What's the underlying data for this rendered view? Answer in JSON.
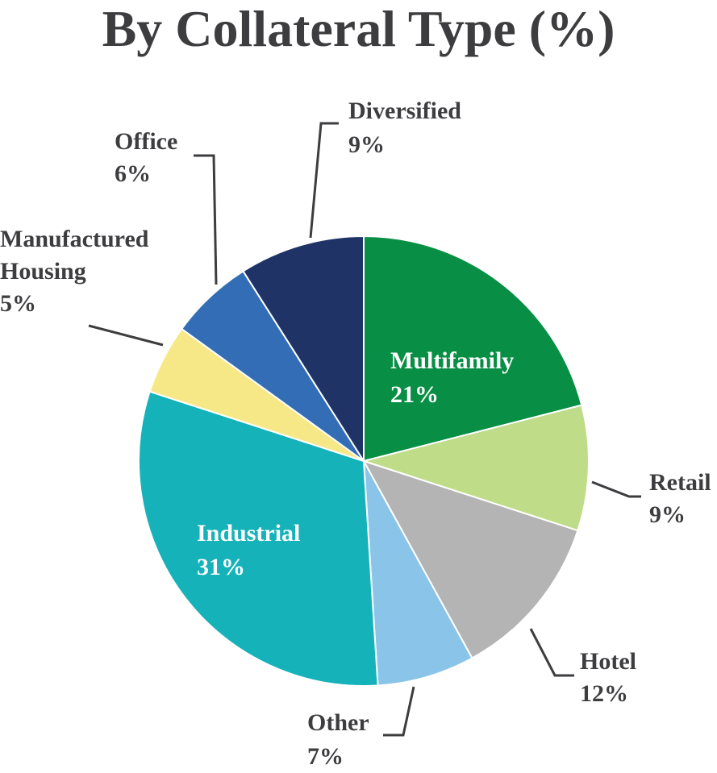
{
  "chart_data": {
    "type": "pie",
    "title": "By Collateral Type (%)",
    "slices": [
      {
        "label": "Multifamily",
        "value": 21,
        "display": "21%",
        "color": "#098f45"
      },
      {
        "label": "Retail",
        "value": 9,
        "display": "9%",
        "color": "#bfdc88"
      },
      {
        "label": "Hotel",
        "value": 12,
        "display": "12%",
        "color": "#b4b4b4"
      },
      {
        "label": "Other",
        "value": 7,
        "display": "7%",
        "color": "#8ac4e8"
      },
      {
        "label": "Industrial",
        "value": 31,
        "display": "31%",
        "color": "#15b2b9"
      },
      {
        "label": "Manufactured Housing",
        "value": 5,
        "display": "5%",
        "color": "#f7e887"
      },
      {
        "label": "Office",
        "value": 6,
        "display": "6%",
        "color": "#336db5"
      },
      {
        "label": "Diversified",
        "value": 9,
        "display": "9%",
        "color": "#1f3366"
      }
    ],
    "label_color": "#3d3d40",
    "inner_label_color": "#ffffff"
  }
}
